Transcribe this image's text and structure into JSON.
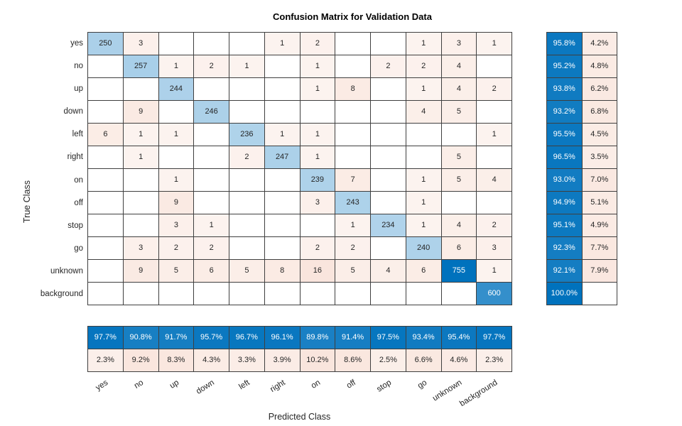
{
  "chart_data": {
    "type": "heatmap",
    "title": "Confusion Matrix for Validation Data",
    "xlabel": "Predicted Class",
    "ylabel": "True Class",
    "classes": [
      "yes",
      "no",
      "up",
      "down",
      "left",
      "right",
      "on",
      "off",
      "stop",
      "go",
      "unknown",
      "background"
    ],
    "matrix": [
      [
        250,
        3,
        0,
        0,
        0,
        1,
        2,
        0,
        0,
        1,
        3,
        1
      ],
      [
        0,
        257,
        1,
        2,
        1,
        0,
        1,
        0,
        2,
        2,
        4,
        0
      ],
      [
        0,
        0,
        244,
        0,
        0,
        0,
        1,
        8,
        0,
        1,
        4,
        2
      ],
      [
        0,
        9,
        0,
        246,
        0,
        0,
        0,
        0,
        0,
        4,
        5,
        0
      ],
      [
        6,
        1,
        1,
        0,
        236,
        1,
        1,
        0,
        0,
        0,
        0,
        1
      ],
      [
        0,
        1,
        0,
        0,
        2,
        247,
        1,
        0,
        0,
        0,
        5,
        0
      ],
      [
        0,
        0,
        1,
        0,
        0,
        0,
        239,
        7,
        0,
        1,
        5,
        4
      ],
      [
        0,
        0,
        9,
        0,
        0,
        0,
        3,
        243,
        0,
        1,
        0,
        0
      ],
      [
        0,
        0,
        3,
        1,
        0,
        0,
        0,
        1,
        234,
        1,
        4,
        2
      ],
      [
        0,
        3,
        2,
        2,
        0,
        0,
        2,
        2,
        0,
        240,
        6,
        3
      ],
      [
        0,
        9,
        5,
        6,
        5,
        8,
        16,
        5,
        4,
        6,
        755,
        1
      ],
      [
        0,
        0,
        0,
        0,
        0,
        0,
        0,
        0,
        0,
        0,
        0,
        600
      ]
    ],
    "row_summary": {
      "correct_pct": [
        95.8,
        95.2,
        93.8,
        93.2,
        95.5,
        96.5,
        93.0,
        94.9,
        95.1,
        92.3,
        92.1,
        100.0
      ],
      "incorrect_pct": [
        4.2,
        4.8,
        6.2,
        6.8,
        4.5,
        3.5,
        7.0,
        5.1,
        4.9,
        7.7,
        7.9,
        null
      ]
    },
    "column_summary": {
      "correct_pct": [
        97.7,
        90.8,
        91.7,
        95.7,
        96.7,
        96.1,
        89.8,
        91.4,
        97.5,
        93.4,
        95.4,
        97.7
      ],
      "incorrect_pct": [
        2.3,
        9.2,
        8.3,
        4.3,
        3.3,
        3.9,
        10.2,
        8.6,
        2.5,
        6.6,
        4.6,
        2.3
      ]
    },
    "colors": {
      "diagonal": "#0072BD",
      "off_diagonal": "#D95319",
      "empty_cell": "#FFFFFF",
      "grid_line": "#3F3F3F",
      "text_dark": "#262626",
      "text_light": "#FFFFFF"
    },
    "grid": true,
    "legend_position": "none"
  }
}
